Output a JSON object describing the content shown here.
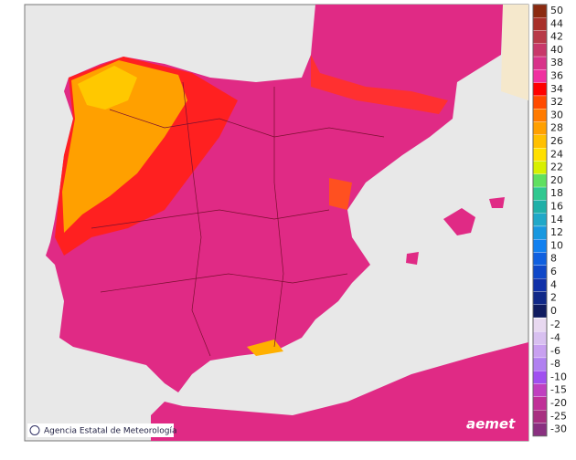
{
  "credit": "Agencia Estatal de Meteorología",
  "logo": "aemet",
  "legend": {
    "labels": [
      50,
      44,
      42,
      40,
      38,
      36,
      34,
      32,
      30,
      28,
      26,
      24,
      22,
      20,
      18,
      16,
      14,
      12,
      10,
      8,
      6,
      4,
      2,
      0,
      -2,
      -4,
      -6,
      -8,
      -10,
      -15,
      -20,
      -25,
      -30
    ],
    "colors": [
      "#8b2a10",
      "#a8302a",
      "#b83a48",
      "#c8386a",
      "#d8338a",
      "#f030a0",
      "#ff0000",
      "#ff4a00",
      "#ff7a00",
      "#ffa000",
      "#ffc000",
      "#ffe000",
      "#d8f000",
      "#60e060",
      "#30c890",
      "#20b0a8",
      "#20a8c8",
      "#1898e0",
      "#1080f0",
      "#1060e0",
      "#1048c8",
      "#1030a8",
      "#102888",
      "#101c60",
      "#e8d8f0",
      "#d8c0f0",
      "#c8a0f0",
      "#b080f0",
      "#a050f0",
      "#c040c0",
      "#c03098",
      "#a83080",
      "#8a3080"
    ]
  }
}
